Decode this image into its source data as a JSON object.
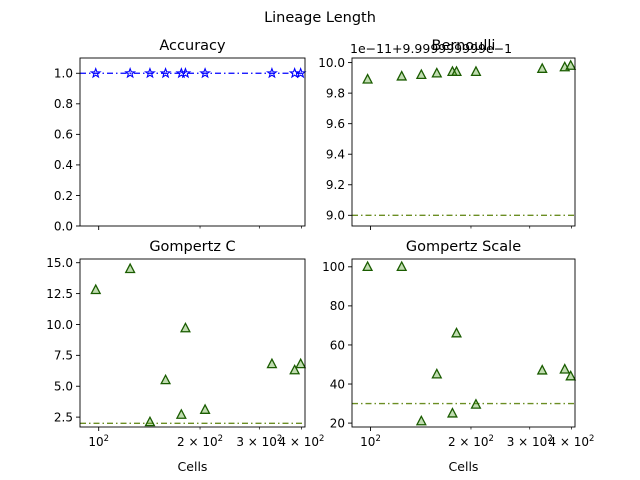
{
  "figure": {
    "suptitle": "Lineage Length"
  },
  "chart_data": [
    {
      "type": "scatter",
      "title": "Accuracy",
      "xlabel": "",
      "ylabel": "",
      "xscale": "log",
      "xlim": [
        88,
        410
      ],
      "ylim": [
        0.0,
        1.1
      ],
      "yticks": [
        0.0,
        0.2,
        0.4,
        0.6,
        0.8,
        1.0
      ],
      "ytick_labels": [
        "0.0",
        "0.2",
        "0.4",
        "0.6",
        "0.8",
        "1.0"
      ],
      "xtick_labels": [],
      "marker": "star",
      "color": "#0000ff",
      "points": [
        {
          "x": 98,
          "y": 1.0
        },
        {
          "x": 124,
          "y": 1.0
        },
        {
          "x": 142,
          "y": 1.0
        },
        {
          "x": 158,
          "y": 1.0
        },
        {
          "x": 176,
          "y": 1.0
        },
        {
          "x": 181,
          "y": 1.0
        },
        {
          "x": 207,
          "y": 1.0
        },
        {
          "x": 327,
          "y": 1.0
        },
        {
          "x": 382,
          "y": 1.0
        },
        {
          "x": 398,
          "y": 1.0
        }
      ],
      "reference_line": {
        "y": 1.0,
        "style": "dash-dot",
        "color": "#0000ff"
      },
      "offset_text": ""
    },
    {
      "type": "scatter",
      "title": "Bernoulli",
      "xlabel": "",
      "ylabel": "",
      "xscale": "log",
      "xlim": [
        88,
        410
      ],
      "ylim": [
        8.93,
        10.03
      ],
      "yticks": [
        9.0,
        9.2,
        9.4,
        9.6,
        9.8,
        10.0
      ],
      "ytick_labels": [
        "9.0",
        "9.2",
        "9.4",
        "9.6",
        "9.8",
        "10.0"
      ],
      "xtick_labels": [],
      "marker": "triangle",
      "color": "#2ca02c",
      "edge_color": "#1a5c00",
      "points": [
        {
          "x": 98,
          "y": 9.89
        },
        {
          "x": 124,
          "y": 9.91
        },
        {
          "x": 142,
          "y": 9.92
        },
        {
          "x": 158,
          "y": 9.93
        },
        {
          "x": 176,
          "y": 9.94
        },
        {
          "x": 181,
          "y": 9.94
        },
        {
          "x": 207,
          "y": 9.94
        },
        {
          "x": 327,
          "y": 9.96
        },
        {
          "x": 382,
          "y": 9.97
        },
        {
          "x": 398,
          "y": 9.98
        }
      ],
      "reference_line": {
        "y": 9.0,
        "style": "dash-dot",
        "color": "#6b8e23"
      },
      "offset_text": "1e−11+9.999999999e−1"
    },
    {
      "type": "scatter",
      "title": "Gompertz C",
      "xlabel": "Cells",
      "ylabel": "",
      "xscale": "log",
      "xlim": [
        88,
        410
      ],
      "ylim": [
        1.7,
        15.3
      ],
      "yticks": [
        2.5,
        5.0,
        7.5,
        10.0,
        12.5,
        15.0
      ],
      "ytick_labels": [
        "2.5",
        "5.0",
        "7.5",
        "10.0",
        "12.5",
        "15.0"
      ],
      "xtick_labels": [
        {
          "x": 100,
          "label": "10²"
        },
        {
          "x": 200,
          "label": "2 × 10²"
        },
        {
          "x": 300,
          "label": "3 × 10²"
        },
        {
          "x": 400,
          "label": "4 × 10²"
        }
      ],
      "marker": "triangle",
      "color": "#2ca02c",
      "edge_color": "#1a5c00",
      "points": [
        {
          "x": 98,
          "y": 12.8
        },
        {
          "x": 124,
          "y": 14.5
        },
        {
          "x": 142,
          "y": 2.1
        },
        {
          "x": 158,
          "y": 5.5
        },
        {
          "x": 176,
          "y": 2.7
        },
        {
          "x": 181,
          "y": 9.7
        },
        {
          "x": 207,
          "y": 3.1
        },
        {
          "x": 327,
          "y": 6.8
        },
        {
          "x": 382,
          "y": 6.3
        },
        {
          "x": 398,
          "y": 6.8
        }
      ],
      "reference_line": {
        "y": 2.0,
        "style": "dash-dot",
        "color": "#6b8e23"
      },
      "offset_text": ""
    },
    {
      "type": "scatter",
      "title": "Gompertz Scale",
      "xlabel": "Cells",
      "ylabel": "",
      "xscale": "log",
      "xlim": [
        88,
        410
      ],
      "ylim": [
        18,
        104
      ],
      "yticks": [
        20,
        40,
        60,
        80,
        100
      ],
      "ytick_labels": [
        "20",
        "40",
        "60",
        "80",
        "100"
      ],
      "xtick_labels": [
        {
          "x": 100,
          "label": "10²"
        },
        {
          "x": 200,
          "label": "2 × 10²"
        },
        {
          "x": 300,
          "label": "3 × 10²"
        },
        {
          "x": 400,
          "label": "4 × 10²"
        }
      ],
      "marker": "triangle",
      "color": "#2ca02c",
      "edge_color": "#1a5c00",
      "points": [
        {
          "x": 98,
          "y": 100
        },
        {
          "x": 124,
          "y": 100
        },
        {
          "x": 142,
          "y": 21
        },
        {
          "x": 158,
          "y": 45
        },
        {
          "x": 176,
          "y": 25
        },
        {
          "x": 181,
          "y": 66
        },
        {
          "x": 207,
          "y": 29.5
        },
        {
          "x": 327,
          "y": 47
        },
        {
          "x": 382,
          "y": 47.5
        },
        {
          "x": 398,
          "y": 44
        }
      ],
      "reference_line": {
        "y": 30,
        "style": "dash-dot",
        "color": "#6b8e23"
      },
      "offset_text": ""
    }
  ]
}
